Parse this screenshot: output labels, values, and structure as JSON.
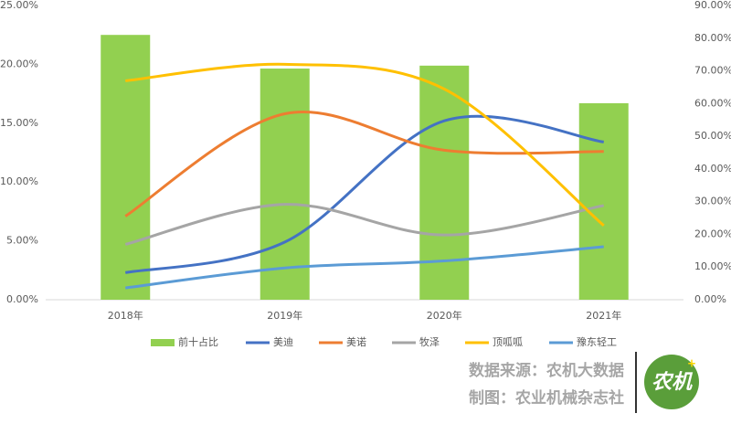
{
  "chart_data": {
    "type": "combo",
    "categories": [
      "2018年",
      "2019年",
      "2020年",
      "2021年"
    ],
    "series": [
      {
        "name": "前十占比",
        "type": "bar",
        "axis": "y2",
        "color": "#92d050",
        "values": [
          81,
          70.7,
          71.6,
          60.1
        ]
      },
      {
        "name": "美迪",
        "type": "line",
        "color": "#4472c4",
        "values": [
          2.3,
          4.9,
          15.2,
          13.4
        ]
      },
      {
        "name": "美诺",
        "type": "line",
        "color": "#ed7d31",
        "values": [
          7.1,
          15.8,
          12.7,
          12.6
        ]
      },
      {
        "name": "牧泽",
        "type": "line",
        "color": "#a5a5a5",
        "values": [
          4.7,
          8.1,
          5.5,
          8.0
        ]
      },
      {
        "name": "顶呱呱",
        "type": "line",
        "color": "#ffc000",
        "values": [
          18.6,
          20.0,
          17.9,
          6.3
        ]
      },
      {
        "name": "豫东轻工",
        "type": "line",
        "color": "#5b9bd5",
        "values": [
          1.0,
          2.7,
          3.3,
          4.5
        ]
      }
    ],
    "ylim": [
      0,
      25
    ],
    "yticks": [
      {
        "value": 0,
        "label": "0.00%"
      },
      {
        "value": 5,
        "label": "5.00%"
      },
      {
        "value": 10,
        "label": "10.00%"
      },
      {
        "value": 15,
        "label": "15.00%"
      },
      {
        "value": 20,
        "label": "20.00%"
      },
      {
        "value": 25,
        "label": "25.00%"
      }
    ],
    "y2lim": [
      0,
      90
    ],
    "y2ticks": [
      {
        "value": 0,
        "label": "0.00%"
      },
      {
        "value": 10,
        "label": "10.00%"
      },
      {
        "value": 20,
        "label": "20.00%"
      },
      {
        "value": 30,
        "label": "30.00%"
      },
      {
        "value": 40,
        "label": "40.00%"
      },
      {
        "value": 50,
        "label": "50.00%"
      },
      {
        "value": 60,
        "label": "60.00%"
      },
      {
        "value": 70,
        "label": "70.00%"
      },
      {
        "value": 80,
        "label": "80.00%"
      },
      {
        "value": 90,
        "label": "90.00%"
      }
    ],
    "legend": "bottom"
  },
  "footer": {
    "source": "数据来源：农机大数据",
    "credit": "制图：农业机械杂志社",
    "logo": "农机"
  }
}
